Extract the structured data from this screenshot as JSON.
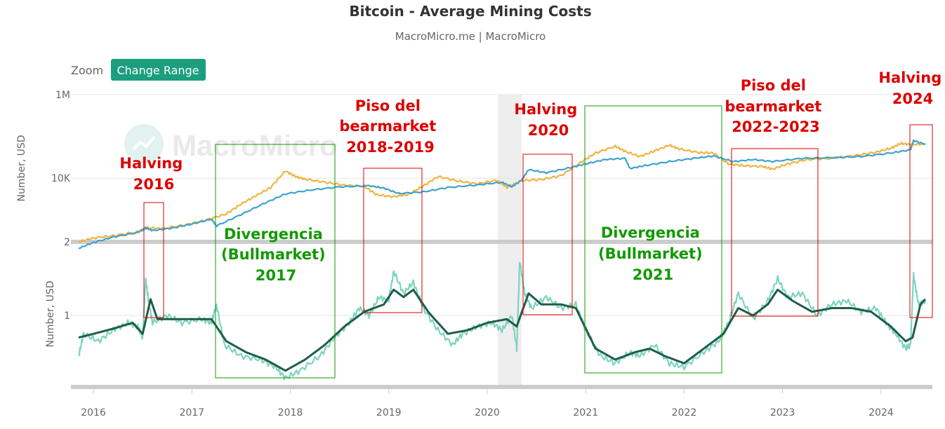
{
  "title": "Bitcoin - Average Mining Costs",
  "subtitle": "MacroMicro.me | MacroMicro",
  "watermark": "MacroMicro",
  "zoom": {
    "label": "Zoom",
    "button": "Change Range"
  },
  "colors": {
    "price": "#f0b441",
    "cost": "#3ea3cd",
    "ratio_raw": "#7fd3c0",
    "ratio_smooth": "#1d5e49",
    "red": "#dd0000",
    "green": "#119900",
    "accent": "#1a9e7e"
  },
  "chart_data": [
    {
      "type": "line",
      "scale": "log",
      "ylabel": "Number, USD",
      "yticks": [
        {
          "value": 10000,
          "label": "10K"
        },
        {
          "value": 1000000,
          "label": "1M"
        }
      ],
      "ylim": [
        300,
        1000000
      ],
      "xlim": [
        2015.85,
        2024.45
      ],
      "series": [
        {
          "key": "price",
          "points": [
            [
              2015.85,
              300
            ],
            [
              2016.0,
              370
            ],
            [
              2016.2,
              420
            ],
            [
              2016.45,
              520
            ],
            [
              2016.55,
              650
            ],
            [
              2016.7,
              620
            ],
            [
              2016.95,
              780
            ],
            [
              2017.15,
              1000
            ],
            [
              2017.35,
              1400
            ],
            [
              2017.5,
              2400
            ],
            [
              2017.65,
              3800
            ],
            [
              2017.8,
              6000
            ],
            [
              2017.95,
              15000
            ],
            [
              2018.05,
              11000
            ],
            [
              2018.15,
              9500
            ],
            [
              2018.35,
              8000
            ],
            [
              2018.55,
              6800
            ],
            [
              2018.75,
              6400
            ],
            [
              2018.88,
              4000
            ],
            [
              2019.05,
              3600
            ],
            [
              2019.2,
              4100
            ],
            [
              2019.35,
              6500
            ],
            [
              2019.5,
              11000
            ],
            [
              2019.7,
              8600
            ],
            [
              2019.9,
              7300
            ],
            [
              2020.1,
              9000
            ],
            [
              2020.2,
              6000
            ],
            [
              2020.35,
              8800
            ],
            [
              2020.55,
              9300
            ],
            [
              2020.75,
              11500
            ],
            [
              2020.95,
              24000
            ],
            [
              2021.1,
              40000
            ],
            [
              2021.3,
              58000
            ],
            [
              2021.4,
              44000
            ],
            [
              2021.55,
              33000
            ],
            [
              2021.7,
              45000
            ],
            [
              2021.85,
              62000
            ],
            [
              2021.95,
              50000
            ],
            [
              2022.15,
              41000
            ],
            [
              2022.3,
              40000
            ],
            [
              2022.45,
              22000
            ],
            [
              2022.6,
              20000
            ],
            [
              2022.8,
              19000
            ],
            [
              2022.9,
              16500
            ],
            [
              2023.05,
              22000
            ],
            [
              2023.25,
              28000
            ],
            [
              2023.5,
              30000
            ],
            [
              2023.75,
              35000
            ],
            [
              2023.95,
              42000
            ],
            [
              2024.1,
              52000
            ],
            [
              2024.2,
              68000
            ],
            [
              2024.3,
              64000
            ],
            [
              2024.45,
              66000
            ]
          ]
        },
        {
          "key": "cost",
          "points": [
            [
              2015.85,
              210
            ],
            [
              2016.0,
              290
            ],
            [
              2016.2,
              390
            ],
            [
              2016.45,
              500
            ],
            [
              2016.53,
              650
            ],
            [
              2016.6,
              560
            ],
            [
              2016.8,
              640
            ],
            [
              2017.0,
              800
            ],
            [
              2017.2,
              1050
            ],
            [
              2017.25,
              720
            ],
            [
              2017.5,
              1350
            ],
            [
              2017.75,
              2600
            ],
            [
              2017.95,
              4200
            ],
            [
              2018.2,
              5200
            ],
            [
              2018.5,
              6200
            ],
            [
              2018.8,
              6600
            ],
            [
              2018.95,
              5800
            ],
            [
              2019.1,
              4300
            ],
            [
              2019.35,
              4700
            ],
            [
              2019.6,
              6000
            ],
            [
              2019.9,
              6900
            ],
            [
              2020.15,
              8000
            ],
            [
              2020.25,
              6200
            ],
            [
              2020.35,
              9000
            ],
            [
              2020.42,
              16000
            ],
            [
              2020.6,
              13500
            ],
            [
              2020.85,
              18000
            ],
            [
              2021.0,
              22000
            ],
            [
              2021.2,
              28000
            ],
            [
              2021.4,
              30000
            ],
            [
              2021.45,
              17000
            ],
            [
              2021.6,
              20000
            ],
            [
              2021.85,
              25000
            ],
            [
              2022.1,
              30000
            ],
            [
              2022.3,
              34000
            ],
            [
              2022.5,
              25000
            ],
            [
              2022.7,
              28000
            ],
            [
              2022.9,
              25000
            ],
            [
              2023.2,
              30000
            ],
            [
              2023.5,
              31000
            ],
            [
              2023.8,
              33000
            ],
            [
              2024.1,
              40000
            ],
            [
              2024.3,
              48000
            ],
            [
              2024.33,
              80000
            ],
            [
              2024.45,
              64000
            ]
          ]
        }
      ]
    },
    {
      "type": "line",
      "ylabel": "Number, USD",
      "yticks": [
        {
          "value": 1,
          "label": "1"
        },
        {
          "value": 2,
          "label": "2"
        }
      ],
      "ylim": [
        0.0,
        2.0
      ],
      "xlim": [
        2015.85,
        2024.45
      ],
      "xticks": [
        {
          "value": 2016,
          "label": "2016"
        },
        {
          "value": 2017,
          "label": "2017"
        },
        {
          "value": 2018,
          "label": "2018"
        },
        {
          "value": 2019,
          "label": "2019"
        },
        {
          "value": 2020,
          "label": "2020"
        },
        {
          "value": 2021,
          "label": "2021"
        },
        {
          "value": 2022,
          "label": "2022"
        },
        {
          "value": 2023,
          "label": "2023"
        },
        {
          "value": 2024,
          "label": "2024"
        }
      ],
      "series": [
        {
          "key": "ratio_raw",
          "points": [
            [
              2015.85,
              0.45
            ],
            [
              2015.9,
              0.75
            ],
            [
              2016.05,
              0.65
            ],
            [
              2016.2,
              0.8
            ],
            [
              2016.35,
              0.9
            ],
            [
              2016.45,
              0.85
            ],
            [
              2016.5,
              0.7
            ],
            [
              2016.53,
              1.5
            ],
            [
              2016.56,
              1.2
            ],
            [
              2016.6,
              0.9
            ],
            [
              2016.75,
              1.0
            ],
            [
              2016.9,
              0.9
            ],
            [
              2017.1,
              0.95
            ],
            [
              2017.2,
              0.9
            ],
            [
              2017.25,
              1.15
            ],
            [
              2017.33,
              0.6
            ],
            [
              2017.5,
              0.45
            ],
            [
              2017.7,
              0.4
            ],
            [
              2017.85,
              0.3
            ],
            [
              2017.95,
              0.15
            ],
            [
              2018.1,
              0.25
            ],
            [
              2018.3,
              0.45
            ],
            [
              2018.45,
              0.7
            ],
            [
              2018.6,
              0.9
            ],
            [
              2018.7,
              1.1
            ],
            [
              2018.8,
              1.0
            ],
            [
              2018.9,
              1.25
            ],
            [
              2019.0,
              1.2
            ],
            [
              2019.05,
              1.6
            ],
            [
              2019.15,
              1.3
            ],
            [
              2019.25,
              1.45
            ],
            [
              2019.35,
              1.1
            ],
            [
              2019.5,
              0.8
            ],
            [
              2019.65,
              0.6
            ],
            [
              2019.75,
              0.75
            ],
            [
              2019.9,
              0.85
            ],
            [
              2020.05,
              0.9
            ],
            [
              2020.15,
              0.8
            ],
            [
              2020.25,
              1.0
            ],
            [
              2020.3,
              0.55
            ],
            [
              2020.33,
              1.75
            ],
            [
              2020.38,
              1.3
            ],
            [
              2020.45,
              1.1
            ],
            [
              2020.6,
              1.25
            ],
            [
              2020.75,
              1.1
            ],
            [
              2020.9,
              1.15
            ],
            [
              2021.0,
              0.8
            ],
            [
              2021.15,
              0.45
            ],
            [
              2021.3,
              0.35
            ],
            [
              2021.45,
              0.5
            ],
            [
              2021.55,
              0.45
            ],
            [
              2021.7,
              0.6
            ],
            [
              2021.85,
              0.35
            ],
            [
              2022.0,
              0.3
            ],
            [
              2022.2,
              0.5
            ],
            [
              2022.35,
              0.65
            ],
            [
              2022.45,
              0.9
            ],
            [
              2022.55,
              1.3
            ],
            [
              2022.7,
              0.95
            ],
            [
              2022.85,
              1.2
            ],
            [
              2022.95,
              1.5
            ],
            [
              2023.05,
              1.25
            ],
            [
              2023.2,
              1.3
            ],
            [
              2023.35,
              1.0
            ],
            [
              2023.5,
              1.15
            ],
            [
              2023.65,
              1.2
            ],
            [
              2023.8,
              1.05
            ],
            [
              2023.95,
              1.1
            ],
            [
              2024.05,
              0.9
            ],
            [
              2024.15,
              0.75
            ],
            [
              2024.25,
              0.55
            ],
            [
              2024.3,
              0.6
            ],
            [
              2024.33,
              1.55
            ],
            [
              2024.38,
              1.15
            ],
            [
              2024.45,
              1.2
            ]
          ]
        },
        {
          "key": "ratio_smooth",
          "points": [
            [
              2015.85,
              0.7
            ],
            [
              2016.0,
              0.75
            ],
            [
              2016.2,
              0.82
            ],
            [
              2016.4,
              0.9
            ],
            [
              2016.5,
              0.75
            ],
            [
              2016.58,
              1.22
            ],
            [
              2016.65,
              0.95
            ],
            [
              2016.8,
              0.95
            ],
            [
              2017.0,
              0.95
            ],
            [
              2017.2,
              0.95
            ],
            [
              2017.35,
              0.65
            ],
            [
              2017.55,
              0.5
            ],
            [
              2017.75,
              0.4
            ],
            [
              2017.95,
              0.25
            ],
            [
              2018.15,
              0.4
            ],
            [
              2018.35,
              0.6
            ],
            [
              2018.55,
              0.85
            ],
            [
              2018.75,
              1.05
            ],
            [
              2018.95,
              1.15
            ],
            [
              2019.05,
              1.35
            ],
            [
              2019.15,
              1.25
            ],
            [
              2019.25,
              1.35
            ],
            [
              2019.4,
              1.05
            ],
            [
              2019.6,
              0.75
            ],
            [
              2019.8,
              0.8
            ],
            [
              2020.0,
              0.9
            ],
            [
              2020.2,
              0.95
            ],
            [
              2020.3,
              0.85
            ],
            [
              2020.42,
              1.3
            ],
            [
              2020.55,
              1.15
            ],
            [
              2020.75,
              1.15
            ],
            [
              2020.9,
              1.1
            ],
            [
              2021.1,
              0.55
            ],
            [
              2021.3,
              0.4
            ],
            [
              2021.5,
              0.5
            ],
            [
              2021.65,
              0.55
            ],
            [
              2021.8,
              0.45
            ],
            [
              2022.0,
              0.35
            ],
            [
              2022.2,
              0.55
            ],
            [
              2022.4,
              0.75
            ],
            [
              2022.55,
              1.1
            ],
            [
              2022.7,
              1.0
            ],
            [
              2022.85,
              1.15
            ],
            [
              2022.95,
              1.35
            ],
            [
              2023.1,
              1.2
            ],
            [
              2023.3,
              1.05
            ],
            [
              2023.5,
              1.1
            ],
            [
              2023.7,
              1.1
            ],
            [
              2023.9,
              1.05
            ],
            [
              2024.1,
              0.85
            ],
            [
              2024.25,
              0.65
            ],
            [
              2024.32,
              0.7
            ],
            [
              2024.4,
              1.15
            ],
            [
              2024.45,
              1.22
            ]
          ]
        }
      ]
    }
  ],
  "annotations": {
    "halving_2016": {
      "lines": [
        "Halving",
        "2016"
      ]
    },
    "div_2017": {
      "lines": [
        "Divergencia",
        "(Bullmarket)",
        "2017"
      ]
    },
    "piso_2018": {
      "lines": [
        "Piso del",
        "bearmarket",
        "2018-2019"
      ]
    },
    "halving_2020": {
      "lines": [
        "Halving",
        "2020"
      ]
    },
    "div_2021": {
      "lines": [
        "Divergencia",
        "(Bullmarket)",
        "2021"
      ]
    },
    "piso_2022": {
      "lines": [
        "Piso del",
        "bearmarket",
        "2022-2023"
      ]
    },
    "halving_2024": {
      "lines": [
        "Halving",
        "2024"
      ]
    }
  }
}
